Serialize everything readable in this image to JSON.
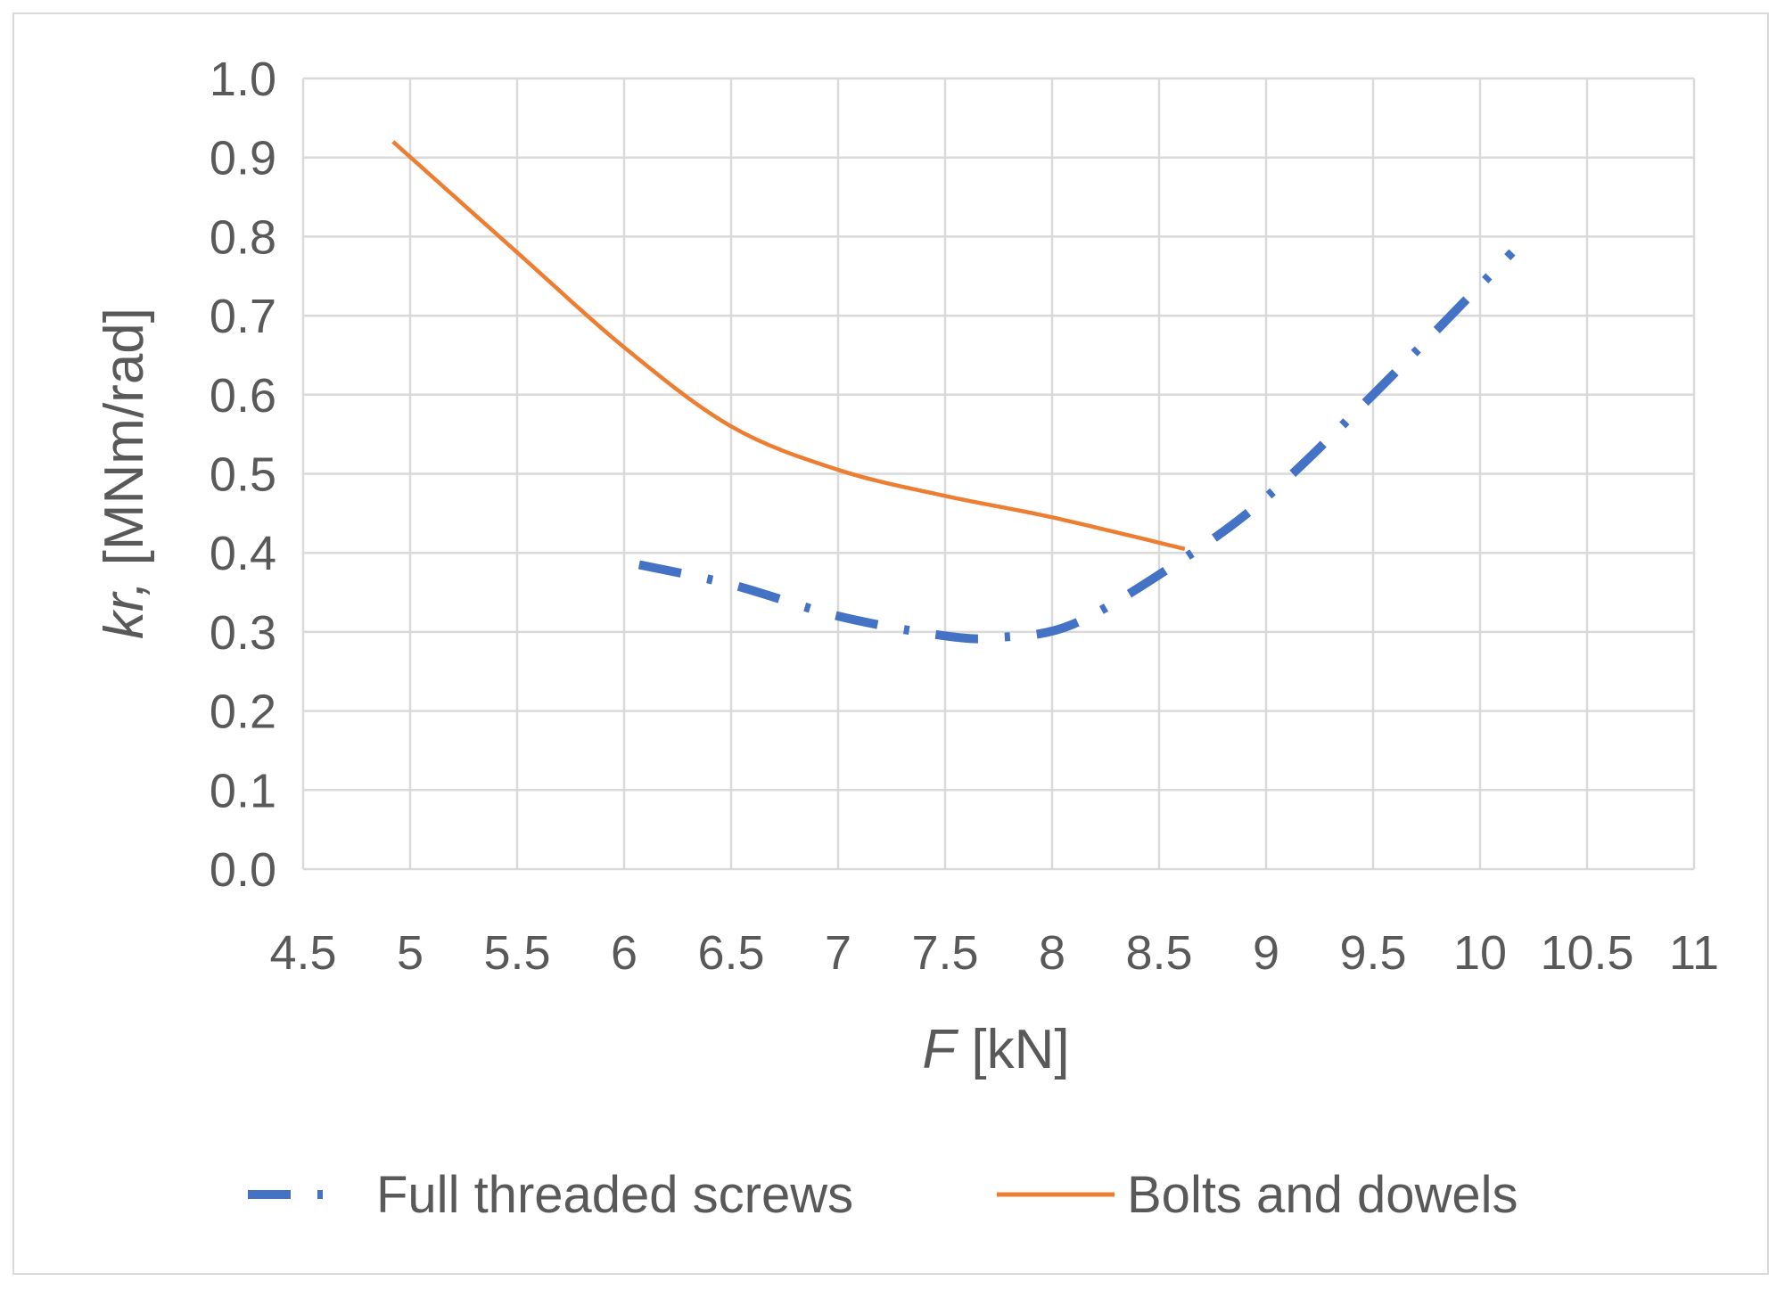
{
  "chart_data": {
    "type": "line",
    "xlabel": {
      "italic": "F",
      "rest": " [kN]"
    },
    "ylabel": {
      "italic": "kr,",
      "rest": " [MNm/rad]"
    },
    "xlim": [
      4.5,
      11
    ],
    "ylim": [
      0.0,
      1.0
    ],
    "x_ticks": [
      4.5,
      5,
      5.5,
      6,
      6.5,
      7,
      7.5,
      8,
      8.5,
      9,
      9.5,
      10,
      10.5,
      11
    ],
    "y_ticks": [
      0.0,
      0.1,
      0.2,
      0.3,
      0.4,
      0.5,
      0.6,
      0.7,
      0.8,
      0.9,
      1.0
    ],
    "y_tick_labels": [
      "0.0",
      "0.1",
      "0.2",
      "0.3",
      "0.4",
      "0.5",
      "0.6",
      "0.7",
      "0.8",
      "0.9",
      "1.0"
    ],
    "x_tick_labels": [
      "4.5",
      "5",
      "5.5",
      "6",
      "6.5",
      "7",
      "7.5",
      "8",
      "8.5",
      "9",
      "9.5",
      "10",
      "10.5",
      "11"
    ],
    "grid": true,
    "legend_position": "bottom",
    "series": [
      {
        "name": "Full threaded screws",
        "color": "#4472C4",
        "style": "dash-dot",
        "x": [
          6.07,
          6.5,
          7.0,
          7.5,
          7.75,
          8.1,
          8.6,
          9.0,
          9.5,
          10.15
        ],
        "y": [
          0.385,
          0.36,
          0.32,
          0.295,
          0.293,
          0.31,
          0.39,
          0.47,
          0.6,
          0.78
        ]
      },
      {
        "name": "Bolts and dowels",
        "color": "#ED7D31",
        "style": "solid",
        "x": [
          4.92,
          5.5,
          6.0,
          6.5,
          7.0,
          7.5,
          8.0,
          8.62
        ],
        "y": [
          0.92,
          0.78,
          0.66,
          0.56,
          0.505,
          0.472,
          0.445,
          0.405
        ]
      }
    ]
  }
}
